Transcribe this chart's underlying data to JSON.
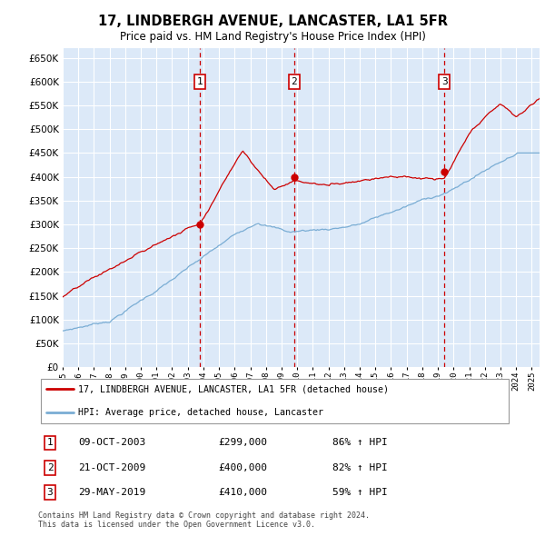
{
  "title": "17, LINDBERGH AVENUE, LANCASTER, LA1 5FR",
  "subtitle": "Price paid vs. HM Land Registry's House Price Index (HPI)",
  "ylim": [
    0,
    670000
  ],
  "yticks": [
    0,
    50000,
    100000,
    150000,
    200000,
    250000,
    300000,
    350000,
    400000,
    450000,
    500000,
    550000,
    600000,
    650000
  ],
  "bg_color": "#dce9f8",
  "grid_color": "#ffffff",
  "sale_color": "#cc0000",
  "hpi_color": "#7aadd4",
  "sale_points": [
    {
      "date_num": 2003.78,
      "price": 299000,
      "label": "1",
      "date_str": "09-OCT-2003",
      "pct": "86%"
    },
    {
      "date_num": 2009.81,
      "price": 400000,
      "label": "2",
      "date_str": "21-OCT-2009",
      "pct": "82%"
    },
    {
      "date_num": 2019.41,
      "price": 410000,
      "label": "3",
      "date_str": "29-MAY-2019",
      "pct": "59%"
    }
  ],
  "legend_sale_label": "17, LINDBERGH AVENUE, LANCASTER, LA1 5FR (detached house)",
  "legend_hpi_label": "HPI: Average price, detached house, Lancaster",
  "footer": "Contains HM Land Registry data © Crown copyright and database right 2024.\nThis data is licensed under the Open Government Licence v3.0.",
  "xmin": 1995,
  "xmax": 2025.5
}
